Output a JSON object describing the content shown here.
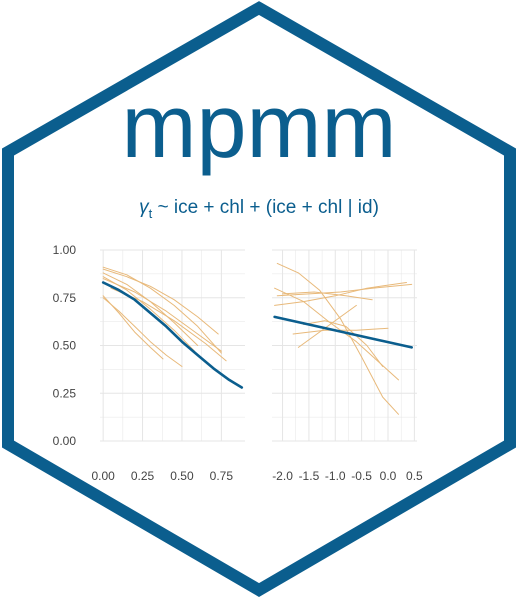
{
  "logo": {
    "title": "mpmm",
    "formula": {
      "gamma": "γ",
      "subscript": "t",
      "rest": " ~ ice + chl + (ice + chl | id)"
    },
    "colors": {
      "brand": "#0b5e8e",
      "thin_lines": "#e8b97a",
      "grid": "#e5e5e5",
      "tick_text": "#444444",
      "background": "#ffffff"
    }
  },
  "chart_data": [
    {
      "type": "line",
      "x": [
        0.0,
        0.1,
        0.2,
        0.3,
        0.4,
        0.5,
        0.6,
        0.7,
        0.8,
        0.88
      ],
      "xlim": [
        -0.02,
        0.9
      ],
      "ylim": [
        0.0,
        1.0
      ],
      "x_ticks": [
        "0.00",
        "0.25",
        "0.50",
        "0.75"
      ],
      "x_tick_values": [
        0.0,
        0.25,
        0.5,
        0.75
      ],
      "y_ticks": [
        "0.00",
        "0.25",
        "0.50",
        "0.75",
        "1.00"
      ],
      "y_tick_values": [
        0.0,
        0.25,
        0.5,
        0.75,
        1.0
      ],
      "grid": true,
      "series": [
        {
          "role": "fixed",
          "x": [
            0.0,
            0.1,
            0.2,
            0.3,
            0.4,
            0.5,
            0.6,
            0.7,
            0.8,
            0.88
          ],
          "y": [
            0.83,
            0.79,
            0.74,
            0.67,
            0.6,
            0.52,
            0.45,
            0.38,
            0.32,
            0.28
          ]
        },
        {
          "role": "individual",
          "x": [
            0.0,
            0.15,
            0.3,
            0.45,
            0.6,
            0.75
          ],
          "y": [
            0.91,
            0.87,
            0.8,
            0.71,
            0.6,
            0.46
          ]
        },
        {
          "role": "individual",
          "x": [
            0.0,
            0.15,
            0.3,
            0.45,
            0.6,
            0.73
          ],
          "y": [
            0.9,
            0.86,
            0.81,
            0.74,
            0.65,
            0.56
          ]
        },
        {
          "role": "individual",
          "x": [
            0.0,
            0.15,
            0.3,
            0.45,
            0.6
          ],
          "y": [
            0.88,
            0.82,
            0.73,
            0.62,
            0.5
          ]
        },
        {
          "role": "individual",
          "x": [
            0.0,
            0.15,
            0.3,
            0.45,
            0.58
          ],
          "y": [
            0.86,
            0.79,
            0.69,
            0.58,
            0.47
          ]
        },
        {
          "role": "individual",
          "x": [
            0.0,
            0.1,
            0.2,
            0.3,
            0.38
          ],
          "y": [
            0.76,
            0.67,
            0.57,
            0.49,
            0.43
          ]
        },
        {
          "role": "individual",
          "x": [
            0.0,
            0.1,
            0.2,
            0.3,
            0.4,
            0.5
          ],
          "y": [
            0.75,
            0.68,
            0.6,
            0.52,
            0.45,
            0.39
          ]
        },
        {
          "role": "individual",
          "x": [
            0.0,
            0.2,
            0.4,
            0.6,
            0.75
          ],
          "y": [
            0.85,
            0.78,
            0.68,
            0.56,
            0.47
          ]
        },
        {
          "role": "individual",
          "x": [
            0.05,
            0.25,
            0.45,
            0.65,
            0.78
          ],
          "y": [
            0.8,
            0.73,
            0.63,
            0.51,
            0.42
          ]
        }
      ]
    },
    {
      "type": "line",
      "xlim": [
        -2.2,
        0.55
      ],
      "ylim": [
        0.0,
        1.0
      ],
      "x_ticks": [
        "-2.0",
        "-1.5",
        "-1.0",
        "-0.5",
        "0.0",
        "0.5"
      ],
      "x_tick_values": [
        -2.0,
        -1.5,
        -1.0,
        -0.5,
        0.0,
        0.5
      ],
      "y_tick_values": [
        0.0,
        0.25,
        0.5,
        0.75,
        1.0
      ],
      "grid": true,
      "series": [
        {
          "role": "fixed",
          "x": [
            -2.15,
            0.45
          ],
          "y": [
            0.65,
            0.49
          ]
        },
        {
          "role": "individual",
          "x": [
            -2.1,
            -1.7,
            -1.3,
            -0.9,
            -0.5,
            -0.1,
            0.2
          ],
          "y": [
            0.93,
            0.88,
            0.79,
            0.64,
            0.44,
            0.23,
            0.14
          ]
        },
        {
          "role": "individual",
          "x": [
            -2.1,
            -1.5,
            -0.9,
            -0.3,
            0.45
          ],
          "y": [
            0.76,
            0.77,
            0.78,
            0.8,
            0.82
          ]
        },
        {
          "role": "individual",
          "x": [
            -2.15,
            -1.6,
            -1.1,
            -0.6,
            0.2
          ],
          "y": [
            0.8,
            0.73,
            0.62,
            0.52,
            0.32
          ]
        },
        {
          "role": "individual",
          "x": [
            -2.0,
            -1.4,
            -0.8,
            -0.3
          ],
          "y": [
            0.77,
            0.78,
            0.76,
            0.74
          ]
        },
        {
          "role": "individual",
          "x": [
            -1.7,
            -1.3,
            -0.9,
            -0.6
          ],
          "y": [
            0.49,
            0.57,
            0.65,
            0.71
          ]
        },
        {
          "role": "individual",
          "x": [
            -1.8,
            -1.2,
            -0.6,
            0.0
          ],
          "y": [
            0.56,
            0.58,
            0.58,
            0.59
          ]
        },
        {
          "role": "individual",
          "x": [
            -2.15,
            -1.6,
            -1.0,
            -0.4,
            0.35
          ],
          "y": [
            0.71,
            0.73,
            0.76,
            0.8,
            0.83
          ]
        },
        {
          "role": "individual",
          "x": [
            -1.6,
            -1.2,
            -0.8,
            -0.4,
            -0.1
          ],
          "y": [
            0.61,
            0.63,
            0.6,
            0.5,
            0.39
          ]
        }
      ]
    }
  ]
}
